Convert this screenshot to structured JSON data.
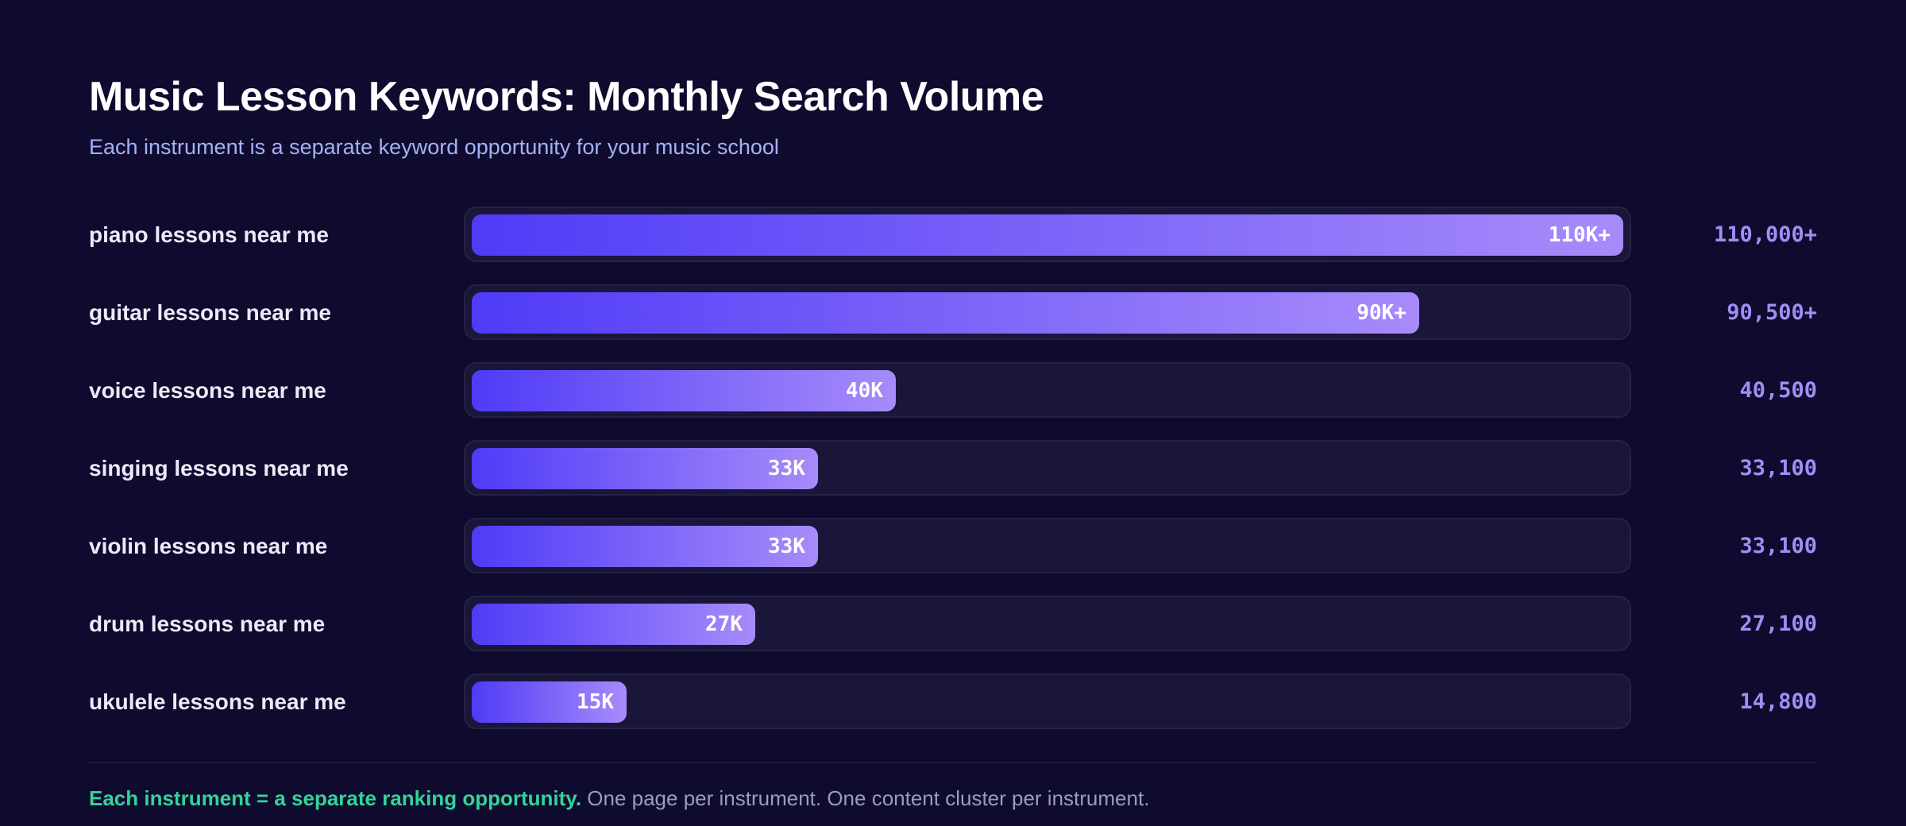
{
  "header": {
    "title": "Music Lesson Keywords: Monthly Search Volume",
    "subtitle": "Each instrument is a separate keyword opportunity for your music school"
  },
  "chart_data": {
    "type": "bar",
    "orientation": "horizontal",
    "title": "Music Lesson Keywords: Monthly Search Volume",
    "subtitle": "Each instrument is a separate keyword opportunity for your music school",
    "xlim": [
      0,
      110000
    ],
    "categories": [
      "piano lessons near me",
      "guitar lessons near me",
      "voice lessons near me",
      "singing lessons near me",
      "violin lessons near me",
      "drum lessons near me",
      "ukulele lessons near me"
    ],
    "values": [
      110000,
      90500,
      40500,
      33100,
      33100,
      27100,
      14800
    ],
    "bar_labels": [
      "110K+",
      "90K+",
      "40K",
      "33K",
      "33K",
      "27K",
      "15K"
    ],
    "value_labels": [
      "110,000+",
      "90,500+",
      "40,500",
      "33,100",
      "33,100",
      "27,100",
      "14,800"
    ],
    "colors": {
      "gradient_start": "#4f3bf7",
      "gradient_end": "#a78bfa",
      "value_text": "#a48cf5",
      "background": "#0f0b2f",
      "track": "#19163a"
    }
  },
  "footer": {
    "highlight": "Each instrument = a separate ranking opportunity.",
    "text": " One page per instrument. One content cluster per instrument.",
    "highlight_color": "#34d399"
  }
}
